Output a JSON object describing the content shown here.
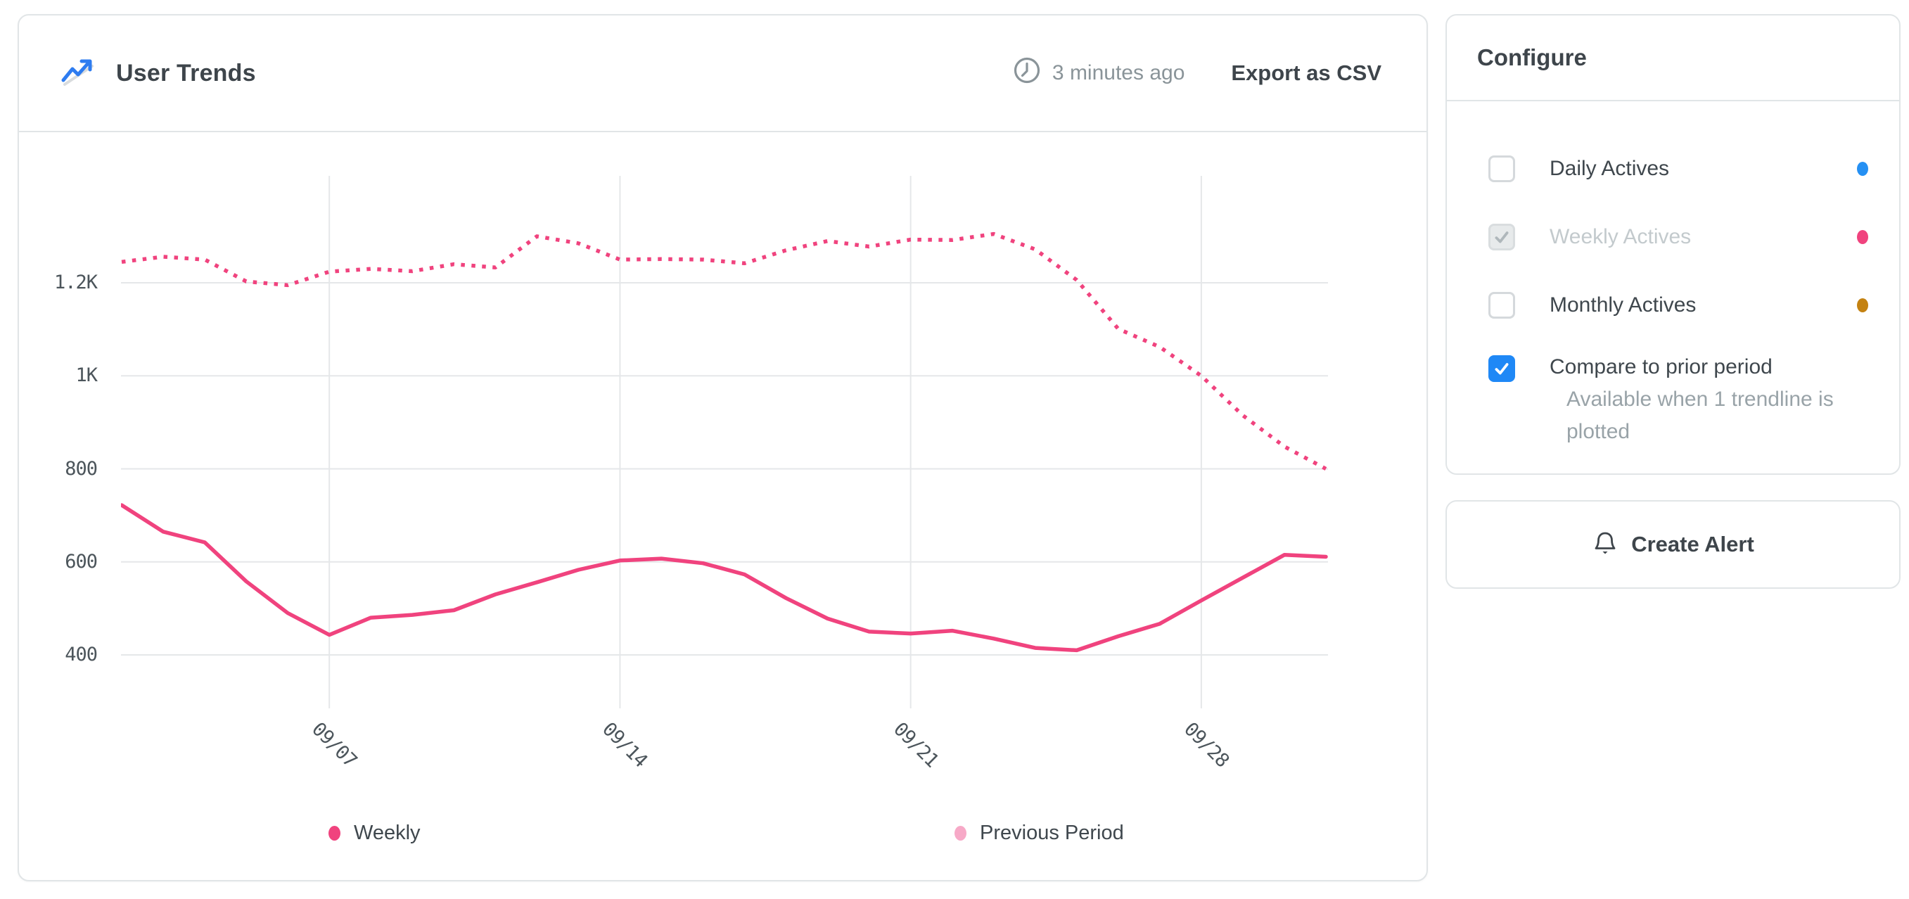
{
  "header": {
    "title": "User Trends",
    "updated": "3 minutes ago",
    "export_label": "Export as CSV"
  },
  "configure": {
    "title": "Configure",
    "series_toggles": [
      {
        "label": "Daily Actives",
        "checked": false,
        "disabled": false,
        "dot_color": "#2590f3"
      },
      {
        "label": "Weekly Actives",
        "checked": true,
        "disabled": true,
        "dot_color": "#f0437e"
      },
      {
        "label": "Monthly Actives",
        "checked": false,
        "disabled": false,
        "dot_color": "#c48211"
      }
    ],
    "compare": {
      "label": "Compare to prior period",
      "checked": true,
      "hint": "Available when 1 trendline is plotted"
    }
  },
  "create_alert": {
    "label": "Create Alert"
  },
  "legend": [
    {
      "label": "Weekly",
      "color": "#f0437e"
    },
    {
      "label": "Previous Period",
      "color": "#f7a9c7"
    }
  ],
  "colors": {
    "accent_pink": "#f0437e",
    "accent_pink_light": "#f7a9c7",
    "accent_blue": "#2590f3",
    "accent_yellow": "#c48211",
    "checkbox_blue": "#1f88f6",
    "grid": "#e5e7e9",
    "icon_blue": "#2e7cf0",
    "text_dark": "#3e454b",
    "text_gray": "#8a9499"
  },
  "chart_data": {
    "type": "line",
    "title": "User Trends",
    "x": [
      "09/02",
      "09/03",
      "09/04",
      "09/05",
      "09/06",
      "09/07",
      "09/08",
      "09/09",
      "09/10",
      "09/11",
      "09/12",
      "09/13",
      "09/14",
      "09/15",
      "09/16",
      "09/17",
      "09/18",
      "09/19",
      "09/20",
      "09/21",
      "09/22",
      "09/23",
      "09/24",
      "09/25",
      "09/26",
      "09/27",
      "09/28",
      "09/29",
      "09/30",
      "10/01"
    ],
    "series": [
      {
        "name": "Weekly",
        "style": "solid",
        "color": "#f0437e",
        "values": [
          722,
          665,
          642,
          558,
          490,
          443,
          480,
          486,
          496,
          530,
          556,
          583,
          603,
          607,
          597,
          573,
          522,
          478,
          450,
          446,
          452,
          435,
          415,
          410,
          440,
          467,
          517,
          566,
          615,
          611
        ]
      },
      {
        "name": "Previous Period",
        "style": "dotted",
        "color": "#f0437e",
        "values": [
          1245,
          1256,
          1250,
          1203,
          1195,
          1224,
          1230,
          1225,
          1240,
          1233,
          1300,
          1285,
          1250,
          1251,
          1250,
          1242,
          1270,
          1290,
          1278,
          1293,
          1292,
          1305,
          1272,
          1206,
          1101,
          1062,
          1000,
          915,
          848,
          800
        ]
      }
    ],
    "y_ticks": [
      {
        "value": 1200,
        "label": "1.2K"
      },
      {
        "value": 1000,
        "label": "1K"
      },
      {
        "value": 800,
        "label": "800"
      },
      {
        "value": 600,
        "label": "600"
      },
      {
        "value": 400,
        "label": "400"
      }
    ],
    "x_ticks": [
      {
        "index": 5,
        "label": "09/07"
      },
      {
        "index": 12,
        "label": "09/14"
      },
      {
        "index": 19,
        "label": "09/21"
      },
      {
        "index": 26,
        "label": "09/28"
      }
    ],
    "ylim": [
      285,
      1430
    ],
    "grid": true,
    "legend_position": "bottom"
  }
}
